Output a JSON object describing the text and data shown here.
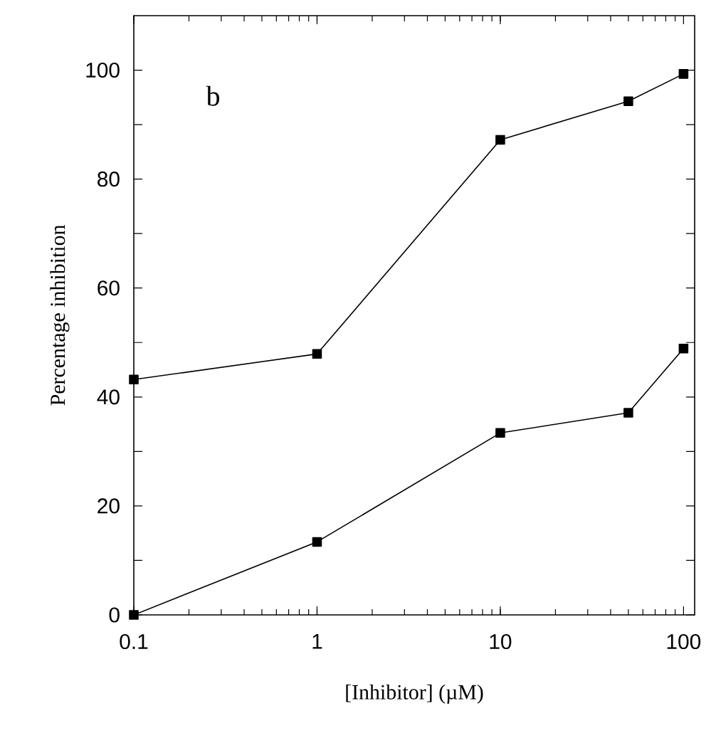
{
  "chart_data": {
    "type": "line",
    "xlabel": "[Inhibitor] (µM)",
    "ylabel": "Percentage inhibition",
    "annotations": [
      "b"
    ],
    "log": "x",
    "marker": "square",
    "line_style": "solid",
    "grid": false,
    "xlim": [
      0.1,
      115
    ],
    "ylim": [
      0,
      110
    ],
    "xticks": [
      {
        "value": 0.1,
        "label": "0.1"
      },
      1,
      10,
      100
    ],
    "yticks": [
      0,
      {
        "value": 10,
        "label": null
      },
      20,
      {
        "value": 30,
        "label": null
      },
      40,
      {
        "value": 50,
        "label": null
      },
      60,
      {
        "value": 70,
        "label": null
      },
      80,
      {
        "value": 90,
        "label": null
      },
      100
    ],
    "x": [
      0.1,
      1,
      10,
      50,
      100
    ],
    "series": [
      {
        "color": "#000000",
        "values": [
          43.2,
          47.9,
          87.2,
          94.3,
          99.3
        ]
      },
      {
        "color": "#000000",
        "values": [
          0,
          13.4,
          33.4,
          37.1,
          48.9
        ]
      }
    ]
  }
}
